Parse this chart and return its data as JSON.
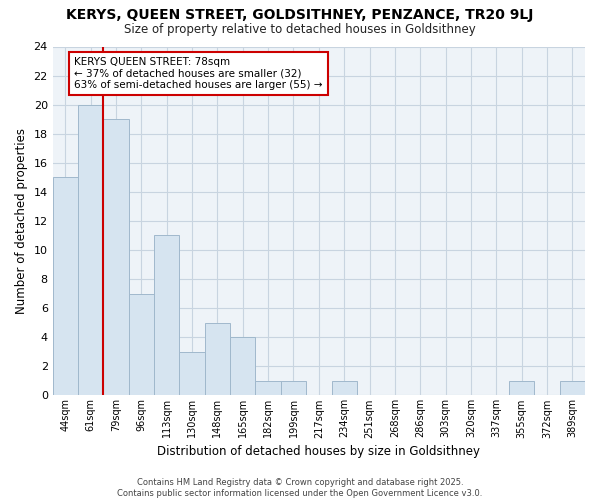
{
  "title": "KERYS, QUEEN STREET, GOLDSITHNEY, PENZANCE, TR20 9LJ",
  "subtitle": "Size of property relative to detached houses in Goldsithney",
  "xlabel": "Distribution of detached houses by size in Goldsithney",
  "ylabel": "Number of detached properties",
  "categories": [
    "44sqm",
    "61sqm",
    "79sqm",
    "96sqm",
    "113sqm",
    "130sqm",
    "148sqm",
    "165sqm",
    "182sqm",
    "199sqm",
    "217sqm",
    "234sqm",
    "251sqm",
    "268sqm",
    "286sqm",
    "303sqm",
    "320sqm",
    "337sqm",
    "355sqm",
    "372sqm",
    "389sqm"
  ],
  "values": [
    15,
    20,
    19,
    7,
    11,
    3,
    5,
    4,
    1,
    1,
    0,
    1,
    0,
    0,
    0,
    0,
    0,
    0,
    1,
    0,
    1
  ],
  "bar_color": "#d6e4f0",
  "bar_edge_color": "#a0b8cc",
  "grid_color": "#c8d4e0",
  "background_color": "#ffffff",
  "plot_bg_color": "#eef3f8",
  "red_line_index": 2,
  "annotation_title": "KERYS QUEEN STREET: 78sqm",
  "annotation_line1": "← 37% of detached houses are smaller (32)",
  "annotation_line2": "63% of semi-detached houses are larger (55) →",
  "annotation_box_color": "#ffffff",
  "annotation_border_color": "#cc0000",
  "red_line_color": "#cc0000",
  "footer_line1": "Contains HM Land Registry data © Crown copyright and database right 2025.",
  "footer_line2": "Contains public sector information licensed under the Open Government Licence v3.0.",
  "ylim": [
    0,
    24
  ],
  "yticks": [
    0,
    2,
    4,
    6,
    8,
    10,
    12,
    14,
    16,
    18,
    20,
    22,
    24
  ]
}
